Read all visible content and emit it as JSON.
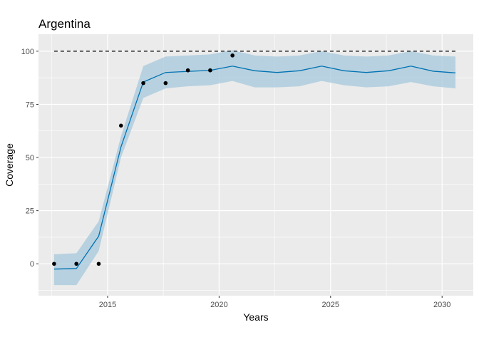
{
  "chart_data": {
    "type": "line",
    "title": "Argentina",
    "xlabel": "Years",
    "ylabel": "Coverage",
    "xlim": [
      2011.9,
      2031.4
    ],
    "ylim": [
      -15,
      108
    ],
    "x_ticks": [
      2015,
      2020,
      2025,
      2030
    ],
    "x_tick_labels": [
      "2015",
      "2020",
      "2025",
      "2030"
    ],
    "y_ticks": [
      0,
      25,
      50,
      75,
      100
    ],
    "y_tick_labels": [
      "0",
      "25",
      "50",
      "75",
      "100"
    ],
    "grid": true,
    "background": "#ebebeb",
    "colors": {
      "line": "#0072b2",
      "band": "#a6c8dc",
      "points": "#000000",
      "reference": "#000000"
    },
    "reference_line": {
      "y": 100,
      "x_range": [
        2012.6,
        2030.6
      ],
      "style": "dashed"
    },
    "series": [
      {
        "type": "line",
        "x": [
          2012.6,
          2013.6,
          2014.6,
          2015.6,
          2016.6,
          2017.6,
          2018.6,
          2019.6,
          2020.6,
          2021.6,
          2022.6,
          2023.6,
          2024.6,
          2025.6,
          2026.6,
          2027.6,
          2028.6,
          2029.6,
          2030.6
        ],
        "values": [
          -2.5,
          -2.2,
          13,
          55,
          85.5,
          90,
          90.5,
          91,
          93,
          90.8,
          90,
          90.8,
          93,
          90.8,
          90,
          90.8,
          93,
          90.6,
          89.8
        ]
      },
      {
        "type": "band",
        "x": [
          2012.6,
          2013.6,
          2014.6,
          2015.6,
          2016.6,
          2017.6,
          2018.6,
          2019.6,
          2020.6,
          2021.6,
          2022.6,
          2023.6,
          2024.6,
          2025.6,
          2026.6,
          2027.6,
          2028.6,
          2029.6,
          2030.6
        ],
        "upper": [
          4.5,
          5,
          20,
          60,
          93,
          97.5,
          98,
          98.5,
          100.5,
          98,
          97.5,
          98,
          100,
          98,
          97.5,
          98,
          100,
          98,
          97.5
        ],
        "lower": [
          -10,
          -10,
          6,
          50,
          78,
          82.5,
          83.5,
          84,
          86,
          83,
          83,
          83.5,
          86,
          84,
          83,
          83.5,
          85.5,
          83.5,
          82.5
        ]
      },
      {
        "type": "scatter",
        "x": [
          2012.6,
          2013.6,
          2014.6,
          2015.6,
          2016.6,
          2017.6,
          2018.6,
          2019.6,
          2020.6
        ],
        "values": [
          0,
          0,
          0,
          65,
          85,
          85,
          91,
          91,
          98
        ]
      }
    ]
  }
}
